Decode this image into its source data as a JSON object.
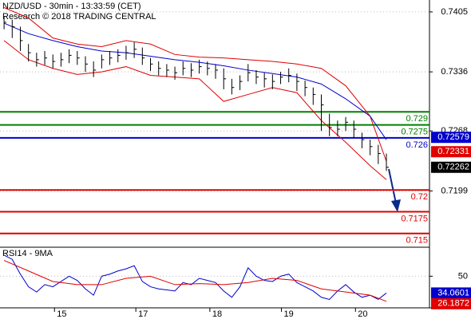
{
  "chart_data": [
    {
      "type": "hlc",
      "title": "NZD/USD - 30min - 13:33:59 (CET)",
      "subtitle": "Research © 2018 TRADING CENTRAL",
      "xlim": [
        -0.5,
        52.3
      ],
      "ylim": [
        0.71342,
        0.74187
      ],
      "yticks": [
        0.7405,
        0.7336,
        0.7268,
        0.7199
      ],
      "grid": true,
      "x": [
        0,
        1,
        2,
        3,
        4,
        5,
        6,
        7,
        8,
        9,
        10,
        11,
        12,
        13,
        14,
        15,
        16,
        17,
        18,
        19,
        20,
        21,
        22,
        23,
        24,
        25,
        26,
        27,
        28,
        29,
        30,
        31,
        32,
        33,
        34,
        35,
        36,
        37,
        38,
        39,
        40,
        41,
        42,
        43,
        44,
        45,
        46,
        47
      ],
      "high": [
        0.74,
        0.7396,
        0.7388,
        0.7368,
        0.7358,
        0.736,
        0.7356,
        0.7358,
        0.7362,
        0.736,
        0.7354,
        0.7348,
        0.7356,
        0.736,
        0.7362,
        0.7366,
        0.737,
        0.7364,
        0.7352,
        0.7348,
        0.7345,
        0.7342,
        0.7348,
        0.7346,
        0.735,
        0.7348,
        0.7345,
        0.734,
        0.7328,
        0.7332,
        0.7345,
        0.7338,
        0.7335,
        0.7333,
        0.7336,
        0.734,
        0.7334,
        0.7326,
        0.7318,
        0.731,
        0.7288,
        0.728,
        0.7284,
        0.728,
        0.7266,
        0.7258,
        0.7252,
        0.7242
      ],
      "low": [
        0.7385,
        0.7375,
        0.736,
        0.7348,
        0.7342,
        0.7344,
        0.734,
        0.7342,
        0.7346,
        0.7344,
        0.7336,
        0.733,
        0.734,
        0.7344,
        0.7347,
        0.735,
        0.7352,
        0.7344,
        0.7337,
        0.7332,
        0.733,
        0.7327,
        0.7332,
        0.733,
        0.7334,
        0.7332,
        0.7328,
        0.7316,
        0.731,
        0.7315,
        0.7325,
        0.7322,
        0.7318,
        0.7316,
        0.7322,
        0.7324,
        0.7314,
        0.7308,
        0.7298,
        0.7268,
        0.7262,
        0.7262,
        0.7268,
        0.726,
        0.7248,
        0.724,
        0.723,
        0.7222
      ],
      "close": [
        0.7393,
        0.7388,
        0.7372,
        0.7358,
        0.735,
        0.7352,
        0.7348,
        0.735,
        0.7355,
        0.7352,
        0.7345,
        0.7338,
        0.735,
        0.7352,
        0.7355,
        0.7358,
        0.7362,
        0.7352,
        0.7345,
        0.734,
        0.7338,
        0.7335,
        0.734,
        0.7338,
        0.7342,
        0.734,
        0.7338,
        0.7328,
        0.7318,
        0.7325,
        0.7335,
        0.733,
        0.7328,
        0.7325,
        0.733,
        0.7332,
        0.7325,
        0.7318,
        0.731,
        0.7298,
        0.7272,
        0.727,
        0.7278,
        0.727,
        0.7258,
        0.725,
        0.7242,
        0.72262
      ],
      "close_color": "#000000",
      "series": [
        {
          "color": "#e00000",
          "x": [
            0,
            3,
            6,
            9,
            12,
            15,
            18,
            21,
            24,
            27,
            30,
            33,
            36,
            39,
            42,
            45,
            47
          ],
          "values": [
            0.741,
            0.7398,
            0.7375,
            0.7368,
            0.7365,
            0.7372,
            0.7368,
            0.7356,
            0.7353,
            0.7352,
            0.735,
            0.7348,
            0.7345,
            0.734,
            0.732,
            0.7285,
            0.72331
          ]
        },
        {
          "color": "#e00000",
          "x": [
            0,
            3,
            6,
            9,
            12,
            15,
            18,
            21,
            24,
            27,
            30,
            33,
            36,
            39,
            42,
            45,
            47
          ],
          "values": [
            0.7372,
            0.735,
            0.734,
            0.7333,
            0.7336,
            0.7342,
            0.7332,
            0.733,
            0.7328,
            0.7302,
            0.731,
            0.7318,
            0.7312,
            0.728,
            0.7255,
            0.7228,
            0.7212
          ]
        },
        {
          "color": "#0000cc",
          "x": [
            0,
            3,
            6,
            9,
            12,
            15,
            18,
            21,
            24,
            27,
            30,
            33,
            36,
            39,
            42,
            45,
            47
          ],
          "values": [
            0.7392,
            0.738,
            0.7372,
            0.7365,
            0.736,
            0.7358,
            0.7354,
            0.735,
            0.7347,
            0.7343,
            0.7338,
            0.7334,
            0.733,
            0.7322,
            0.7305,
            0.7285,
            0.72579
          ]
        }
      ],
      "levels": [
        {
          "value": 0.729,
          "color": "#008000"
        },
        {
          "value": 0.7275,
          "color": "#008000"
        },
        {
          "value": 0.726,
          "color": "#0000cc"
        },
        {
          "value": 0.72,
          "color": "#e00000"
        },
        {
          "value": 0.7175,
          "color": "#e00000"
        },
        {
          "value": 0.715,
          "color": "#e00000"
        }
      ]
    },
    {
      "type": "line",
      "title": "RSI14 - 9MA",
      "xlim": [
        -0.5,
        52.3
      ],
      "ylim": [
        20,
        76
      ],
      "yticks": [
        50
      ],
      "xticks": [
        {
          "value": 6.2,
          "label": "15"
        },
        {
          "value": 16.2,
          "label": "17"
        },
        {
          "value": 25.3,
          "label": "18"
        },
        {
          "value": 34.1,
          "label": "19"
        },
        {
          "value": 43.2,
          "label": "20"
        }
      ],
      "series": [
        {
          "color": "#0000cc",
          "x": [
            0,
            1,
            2,
            3,
            4,
            5,
            6,
            7,
            8,
            9,
            10,
            11,
            12,
            13,
            14,
            15,
            16,
            17,
            18,
            19,
            20,
            21,
            22,
            23,
            24,
            25,
            26,
            27,
            28,
            29,
            30,
            31,
            32,
            33,
            34,
            35,
            36,
            37,
            38,
            39,
            40,
            41,
            42,
            43,
            44,
            45,
            46,
            47
          ],
          "values": [
            70,
            66,
            52,
            40,
            35,
            42,
            40,
            45,
            50,
            46,
            38,
            32,
            50,
            52,
            55,
            57,
            60,
            45,
            40,
            38,
            37,
            36,
            44,
            42,
            48,
            46,
            44,
            36,
            30,
            40,
            58,
            50,
            46,
            45,
            50,
            52,
            44,
            40,
            36,
            30,
            28,
            36,
            42,
            35,
            30,
            32,
            28,
            34.0601
          ]
        },
        {
          "color": "#e00000",
          "x": [
            0,
            3,
            6,
            9,
            12,
            15,
            18,
            21,
            24,
            27,
            30,
            33,
            36,
            39,
            42,
            45,
            47
          ],
          "values": [
            65,
            55,
            45,
            42,
            42,
            48,
            50,
            42,
            43,
            42,
            44,
            48,
            46,
            38,
            35,
            32,
            26.1872
          ]
        }
      ]
    }
  ]
}
